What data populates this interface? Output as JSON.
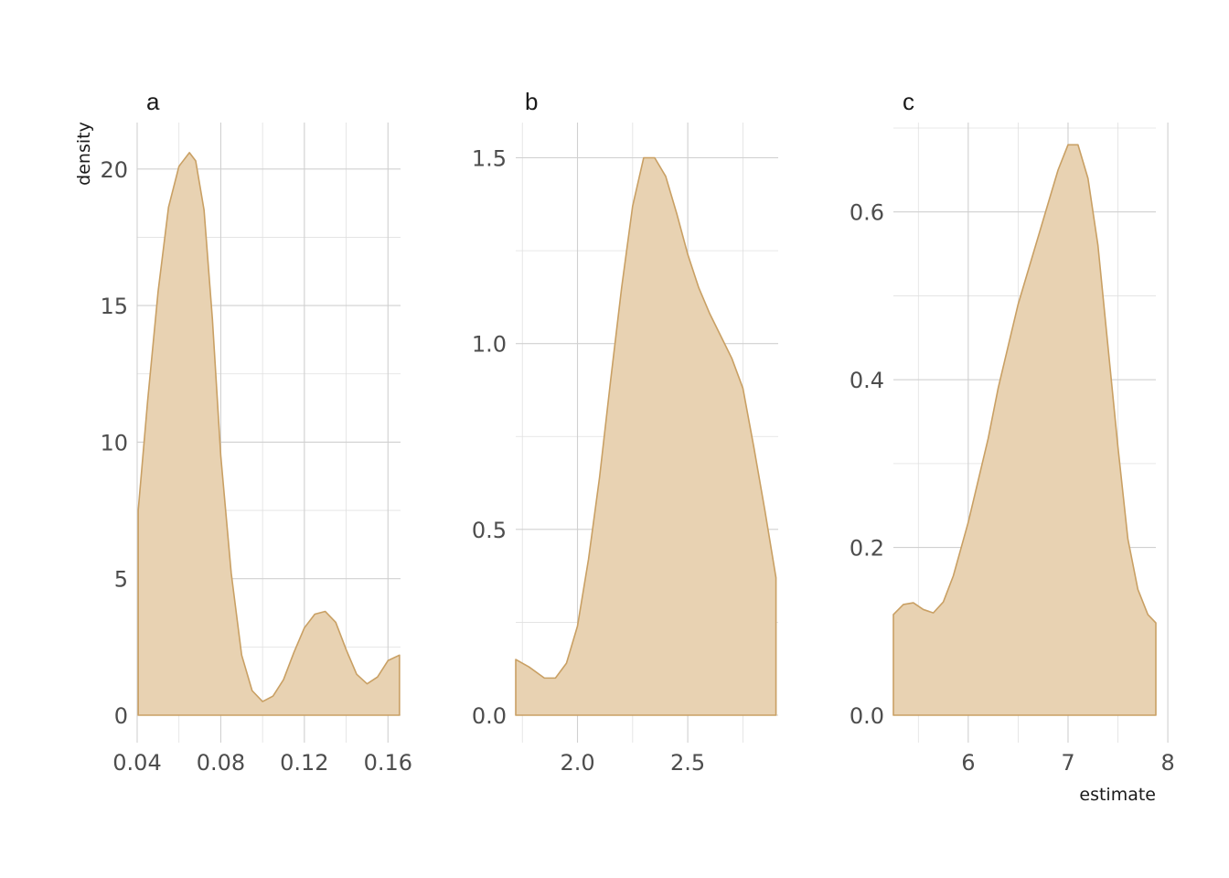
{
  "figure": {
    "y_axis_title": "density",
    "x_axis_title": "estimate",
    "colors": {
      "fill": "#e8d2b2",
      "line": "#c9a064",
      "grid": "#d0d0d0"
    }
  },
  "chart_data": [
    {
      "type": "area",
      "facet": "a",
      "xlim": [
        0.04,
        0.166
      ],
      "ylim": [
        0,
        21.5
      ],
      "x_ticks": [
        0.04,
        0.08,
        0.12,
        0.16
      ],
      "x_tick_labels": [
        "0.04",
        "0.08",
        "0.12",
        "0.16"
      ],
      "y_ticks": [
        0,
        5,
        10,
        15,
        20
      ],
      "y_tick_labels": [
        "0",
        "5",
        "10",
        "15",
        "20"
      ],
      "x": [
        0.0405,
        0.045,
        0.05,
        0.055,
        0.06,
        0.065,
        0.068,
        0.072,
        0.076,
        0.08,
        0.085,
        0.09,
        0.095,
        0.1,
        0.105,
        0.11,
        0.115,
        0.12,
        0.125,
        0.13,
        0.135,
        0.14,
        0.145,
        0.15,
        0.155,
        0.16,
        0.1655
      ],
      "y": [
        7.5,
        11.5,
        15.5,
        18.6,
        20.1,
        20.6,
        20.3,
        18.5,
        14.5,
        9.5,
        5.2,
        2.2,
        0.9,
        0.5,
        0.7,
        1.3,
        2.3,
        3.2,
        3.7,
        3.8,
        3.4,
        2.4,
        1.5,
        1.15,
        1.4,
        2.0,
        2.2
      ]
    },
    {
      "type": "area",
      "facet": "b",
      "xlim": [
        1.72,
        2.91
      ],
      "ylim": [
        0,
        1.58
      ],
      "x_ticks": [
        2.0,
        2.5
      ],
      "x_tick_labels": [
        "2.0",
        "2.5"
      ],
      "y_ticks": [
        0,
        0.5,
        1.0,
        1.5
      ],
      "y_tick_labels": [
        "0.0",
        "0.5",
        "1.0",
        "1.5"
      ],
      "x": [
        1.72,
        1.78,
        1.85,
        1.9,
        1.95,
        2.0,
        2.05,
        2.1,
        2.15,
        2.2,
        2.25,
        2.3,
        2.35,
        2.4,
        2.45,
        2.5,
        2.55,
        2.6,
        2.65,
        2.7,
        2.75,
        2.8,
        2.85,
        2.9
      ],
      "y": [
        0.15,
        0.13,
        0.1,
        0.1,
        0.14,
        0.24,
        0.42,
        0.64,
        0.9,
        1.15,
        1.37,
        1.5,
        1.5,
        1.45,
        1.35,
        1.24,
        1.15,
        1.08,
        1.02,
        0.96,
        0.88,
        0.72,
        0.55,
        0.37
      ]
    },
    {
      "type": "area",
      "facet": "c",
      "xlim": [
        5.25,
        7.88
      ],
      "ylim": [
        0,
        0.7
      ],
      "x_ticks": [
        6,
        7,
        8
      ],
      "x_tick_labels": [
        "6",
        "7",
        "8"
      ],
      "y_ticks": [
        0,
        0.2,
        0.4,
        0.6
      ],
      "y_tick_labels": [
        "0.0",
        "0.2",
        "0.4",
        "0.6"
      ],
      "x": [
        5.25,
        5.35,
        5.45,
        5.55,
        5.65,
        5.75,
        5.85,
        6.0,
        6.1,
        6.2,
        6.3,
        6.4,
        6.5,
        6.6,
        6.7,
        6.8,
        6.9,
        7.0,
        7.1,
        7.2,
        7.3,
        7.4,
        7.5,
        7.6,
        7.7,
        7.8,
        7.88
      ],
      "y": [
        0.12,
        0.132,
        0.134,
        0.126,
        0.122,
        0.135,
        0.166,
        0.23,
        0.28,
        0.33,
        0.39,
        0.44,
        0.49,
        0.53,
        0.57,
        0.61,
        0.65,
        0.68,
        0.68,
        0.64,
        0.56,
        0.44,
        0.32,
        0.21,
        0.15,
        0.12,
        0.11
      ]
    }
  ]
}
